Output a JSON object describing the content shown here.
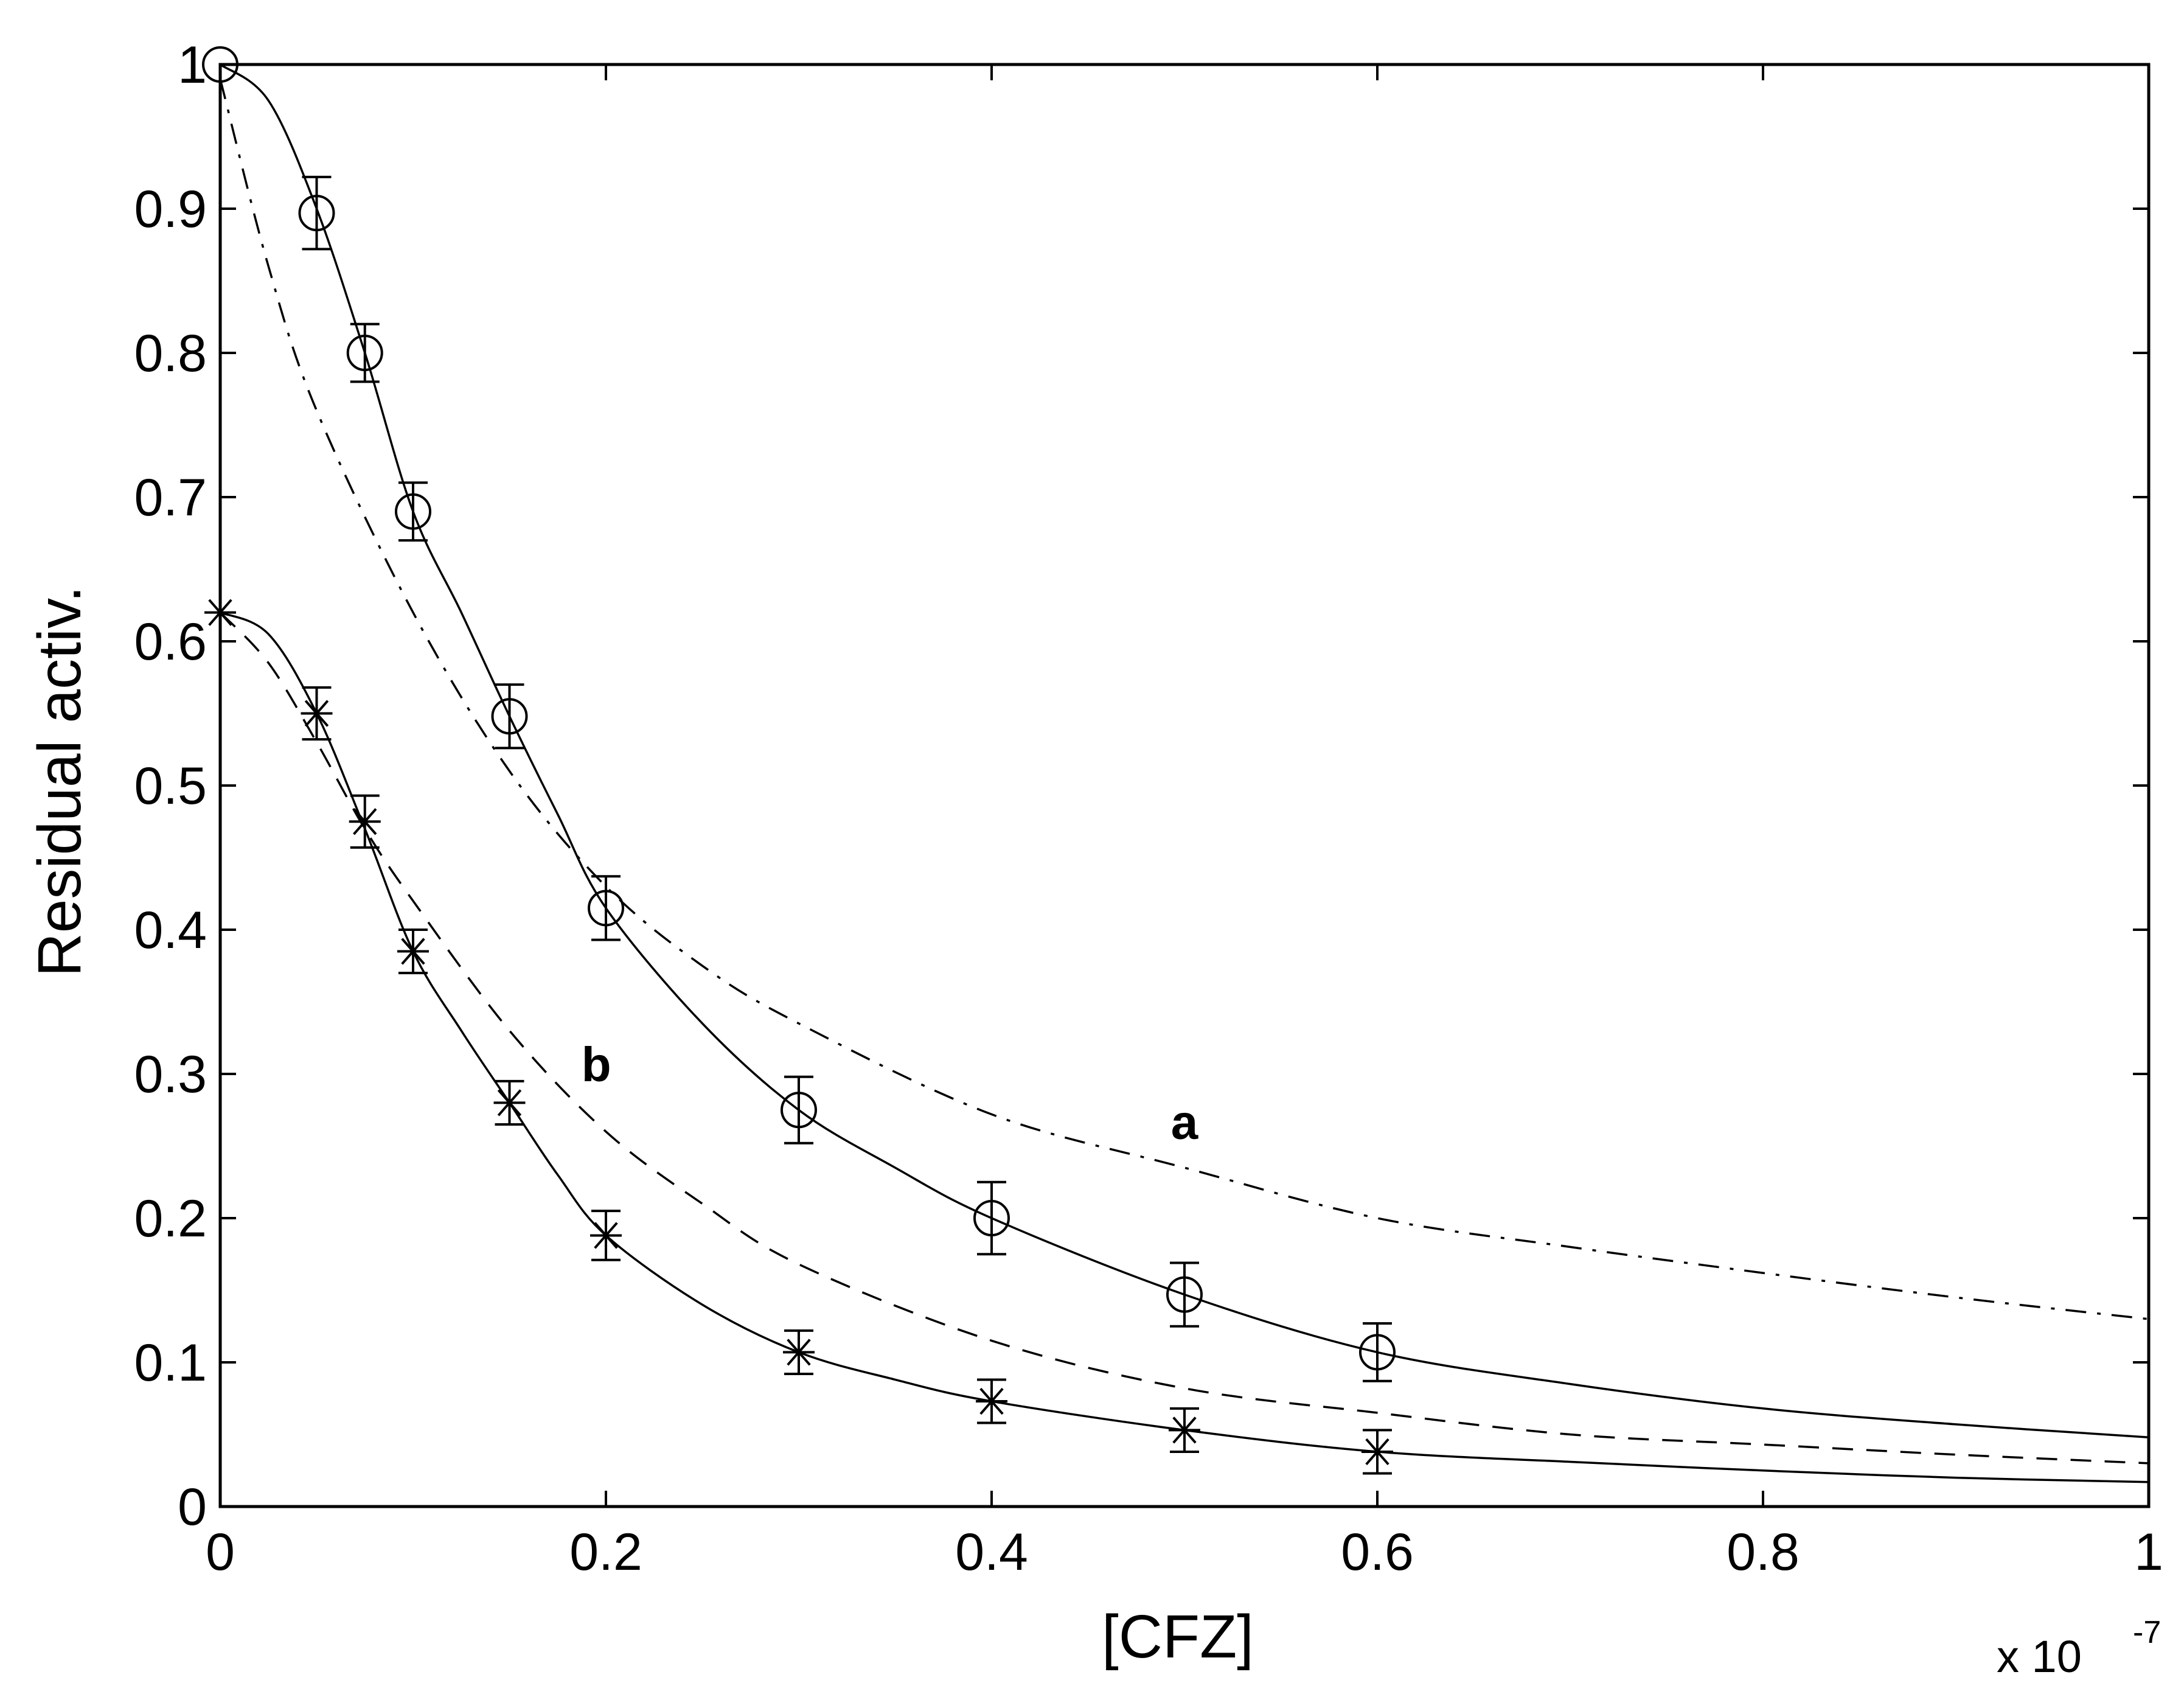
{
  "chart_data": {
    "type": "scatter",
    "xlabel": "[CFZ]",
    "ylabel": "Residual activ.",
    "x_multiplier": "x 10",
    "x_multiplier_exponent": "-7",
    "xlim": [
      0,
      1
    ],
    "ylim": [
      0,
      1
    ],
    "xticks": [
      0,
      0.2,
      0.4,
      0.6,
      0.8,
      1
    ],
    "xtick_labels": [
      "0",
      "0.2",
      "0.4",
      "0.6",
      "0.8",
      "1"
    ],
    "yticks": [
      0,
      0.1,
      0.2,
      0.3,
      0.4,
      0.5,
      0.6,
      0.7,
      0.8,
      0.9,
      1
    ],
    "ytick_labels": [
      "0",
      "0.1",
      "0.2",
      "0.3",
      "0.4",
      "0.5",
      "0.6",
      "0.7",
      "0.8",
      "0.9",
      "1"
    ],
    "grid": false,
    "series": [
      {
        "marker": "circle",
        "x": [
          0,
          0.05,
          0.075,
          0.1,
          0.15,
          0.2,
          0.3,
          0.4,
          0.5,
          0.6
        ],
        "y": [
          1.0,
          0.897,
          0.8,
          0.69,
          0.548,
          0.415,
          0.275,
          0.2,
          0.147,
          0.107
        ],
        "err": [
          0,
          0.025,
          0.02,
          0.02,
          0.022,
          0.022,
          0.023,
          0.025,
          0.022,
          0.02
        ]
      },
      {
        "marker": "asterisk",
        "x": [
          0,
          0.05,
          0.075,
          0.1,
          0.15,
          0.2,
          0.3,
          0.4,
          0.5,
          0.6
        ],
        "y": [
          0.62,
          0.55,
          0.475,
          0.385,
          0.28,
          0.188,
          0.107,
          0.073,
          0.053,
          0.038
        ],
        "err": [
          0,
          0.018,
          0.018,
          0.015,
          0.015,
          0.017,
          0.015,
          0.015,
          0.015,
          0.015
        ]
      }
    ],
    "curves": [
      {
        "style": "solid",
        "x": [
          0,
          0.025,
          0.05,
          0.075,
          0.1,
          0.125,
          0.15,
          0.175,
          0.2,
          0.25,
          0.3,
          0.35,
          0.4,
          0.5,
          0.6,
          0.7,
          0.8,
          0.9,
          1.0
        ],
        "y": [
          1.0,
          0.975,
          0.9,
          0.8,
          0.69,
          0.62,
          0.548,
          0.48,
          0.415,
          0.335,
          0.275,
          0.235,
          0.2,
          0.147,
          0.107,
          0.085,
          0.068,
          0.057,
          0.048
        ]
      },
      {
        "style": "solid",
        "x": [
          0,
          0.025,
          0.05,
          0.075,
          0.1,
          0.125,
          0.15,
          0.175,
          0.2,
          0.25,
          0.3,
          0.35,
          0.4,
          0.5,
          0.6,
          0.7,
          0.8,
          0.9,
          1.0
        ],
        "y": [
          0.62,
          0.605,
          0.55,
          0.47,
          0.385,
          0.33,
          0.28,
          0.23,
          0.188,
          0.14,
          0.107,
          0.088,
          0.073,
          0.053,
          0.038,
          0.031,
          0.025,
          0.02,
          0.017
        ]
      },
      {
        "style": "dashdot",
        "label": "a",
        "label_at": [
          0.5,
          0.255
        ],
        "x": [
          0,
          0.025,
          0.05,
          0.1,
          0.15,
          0.2,
          0.25,
          0.3,
          0.4,
          0.5,
          0.6,
          0.7,
          0.8,
          0.9,
          1.0
        ],
        "y": [
          0.99,
          0.86,
          0.76,
          0.62,
          0.51,
          0.43,
          0.375,
          0.335,
          0.272,
          0.235,
          0.2,
          0.18,
          0.162,
          0.145,
          0.13
        ]
      },
      {
        "style": "dashed",
        "label": "b",
        "label_at": [
          0.195,
          0.295
        ],
        "x": [
          0,
          0.025,
          0.05,
          0.075,
          0.1,
          0.15,
          0.2,
          0.25,
          0.3,
          0.4,
          0.5,
          0.6,
          0.7,
          0.8,
          0.9,
          1.0
        ],
        "y": [
          0.62,
          0.585,
          0.53,
          0.47,
          0.42,
          0.33,
          0.26,
          0.21,
          0.168,
          0.115,
          0.082,
          0.065,
          0.05,
          0.043,
          0.036,
          0.03
        ]
      }
    ]
  }
}
